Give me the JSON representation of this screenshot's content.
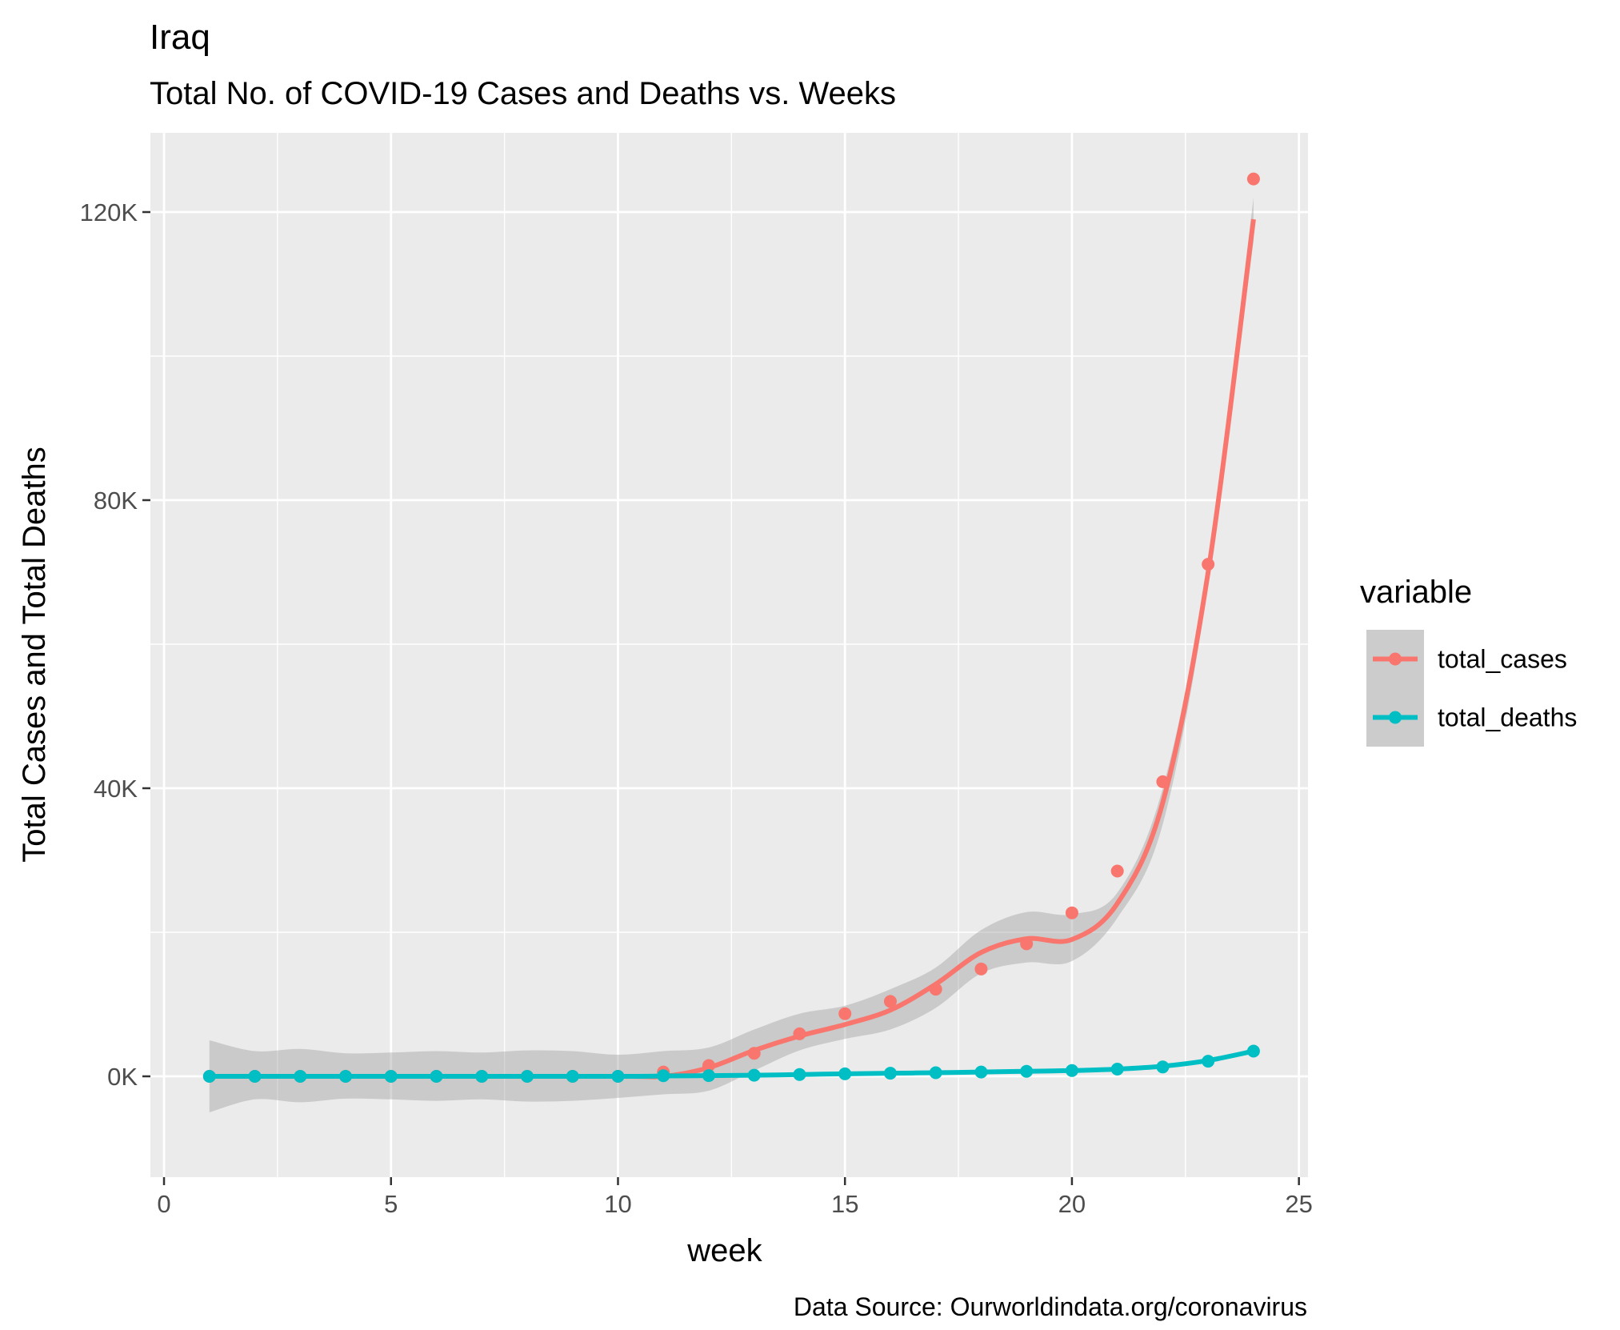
{
  "chart_data": {
    "type": "line",
    "title": "Iraq",
    "subtitle": "Total No. of COVID-19 Cases and Deaths vs. Weeks",
    "xlabel": "week",
    "ylabel": "Total Cases and Total Deaths",
    "caption": "Data Source: Ourworldindata.org/coronavirus",
    "xlim": [
      -0.3,
      25.2
    ],
    "ylim": [
      -14000,
      131000
    ],
    "x_ticks": [
      0,
      5,
      10,
      15,
      20,
      25
    ],
    "x_tick_labels": [
      "0",
      "5",
      "10",
      "15",
      "20",
      "25"
    ],
    "y_ticks": [
      0,
      40000,
      80000,
      120000
    ],
    "y_tick_labels": [
      "0K",
      "40K",
      "80K",
      "120K"
    ],
    "grid": true,
    "legend": {
      "title": "variable",
      "position": "right"
    },
    "series": [
      {
        "name": "total_cases",
        "color": "#F8766D",
        "x": [
          1,
          2,
          3,
          4,
          5,
          6,
          7,
          8,
          9,
          10,
          11,
          12,
          13,
          14,
          15,
          16,
          17,
          18,
          19,
          20,
          21,
          22,
          23,
          24
        ],
        "values": [
          0,
          0,
          0,
          0,
          0,
          0,
          0,
          0,
          0,
          0,
          600,
          1500,
          3200,
          5900,
          8700,
          10400,
          12100,
          14900,
          18400,
          22700,
          28500,
          40900,
          71100,
          124600
        ],
        "smooth": [
          [
            1,
            0
          ],
          [
            5,
            0
          ],
          [
            10,
            0
          ],
          [
            11,
            0
          ],
          [
            12,
            1200
          ],
          [
            13,
            3600
          ],
          [
            14,
            5600
          ],
          [
            15,
            7200
          ],
          [
            16,
            9200
          ],
          [
            17,
            12800
          ],
          [
            18,
            17200
          ],
          [
            19,
            19100
          ],
          [
            20,
            19000
          ],
          [
            21,
            24000
          ],
          [
            22,
            38000
          ],
          [
            23,
            70000
          ],
          [
            24,
            119000
          ]
        ]
      },
      {
        "name": "total_deaths",
        "color": "#00BFC4",
        "x": [
          1,
          2,
          3,
          4,
          5,
          6,
          7,
          8,
          9,
          10,
          11,
          12,
          13,
          14,
          15,
          16,
          17,
          18,
          19,
          20,
          21,
          22,
          23,
          24
        ],
        "values": [
          0,
          0,
          0,
          0,
          0,
          0,
          0,
          0,
          0,
          0,
          80,
          100,
          150,
          250,
          350,
          430,
          500,
          600,
          700,
          800,
          1000,
          1300,
          2100,
          3500
        ],
        "smooth": [
          [
            1,
            0
          ],
          [
            5,
            0
          ],
          [
            10,
            0
          ],
          [
            11,
            50
          ],
          [
            12,
            100
          ],
          [
            13,
            150
          ],
          [
            14,
            250
          ],
          [
            15,
            350
          ],
          [
            16,
            430
          ],
          [
            17,
            500
          ],
          [
            18,
            600
          ],
          [
            19,
            700
          ],
          [
            20,
            800
          ],
          [
            21,
            1000
          ],
          [
            22,
            1400
          ],
          [
            23,
            2200
          ],
          [
            24,
            3500
          ]
        ]
      }
    ],
    "confidence_band": {
      "x": [
        1,
        2,
        3,
        4,
        5,
        6,
        7,
        8,
        9,
        10,
        11,
        12,
        13,
        14,
        15,
        16,
        17,
        18,
        19,
        20,
        21,
        22,
        23,
        24
      ],
      "upper": [
        5000,
        3500,
        3800,
        3200,
        3300,
        3500,
        3300,
        3600,
        3500,
        3000,
        3500,
        4000,
        6500,
        8700,
        9800,
        12100,
        15100,
        20300,
        22800,
        22500,
        25500,
        40000,
        71500,
        122000
      ],
      "lower": [
        -5000,
        -3200,
        -3600,
        -3100,
        -3200,
        -3400,
        -3200,
        -3500,
        -3400,
        -3000,
        -2500,
        -2000,
        800,
        3600,
        5200,
        6500,
        9500,
        14300,
        15800,
        16000,
        22000,
        35000,
        68000,
        116000
      ]
    }
  }
}
